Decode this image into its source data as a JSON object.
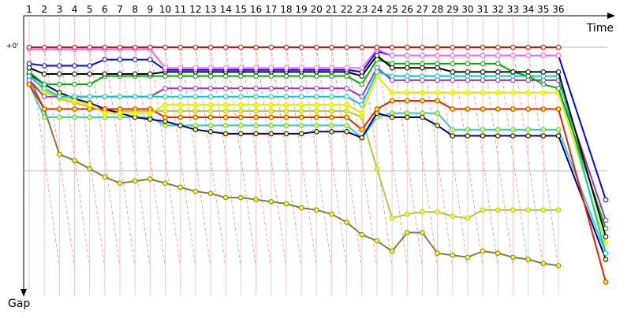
{
  "chart_data": {
    "type": "line",
    "x_label": "Time",
    "y_label": "Gap",
    "categories": [
      "1",
      "2",
      "3",
      "4",
      "5",
      "6",
      "7",
      "8",
      "9",
      "10",
      "11",
      "12",
      "13",
      "14",
      "15",
      "16",
      "17",
      "18",
      "19",
      "20",
      "21",
      "22",
      "23",
      "24",
      "25",
      "26",
      "27",
      "28",
      "29",
      "30",
      "31",
      "32",
      "33",
      "34",
      "35",
      "36",
      null
    ],
    "ylim": [
      0,
      120
    ],
    "yticks": [
      {
        "value": 0,
        "label": "+0'"
      },
      {
        "value": 60,
        "label": null
      }
    ],
    "grid": true,
    "series": [
      {
        "name": null,
        "color": "#808040",
        "marker_fill": "#ffff00",
        "values": [
          15,
          30,
          52,
          55,
          59,
          63,
          66,
          65,
          64,
          66,
          68,
          70,
          71,
          73,
          73,
          74,
          75,
          76,
          78,
          79,
          81,
          85,
          91,
          94,
          99,
          90,
          90,
          100,
          101,
          102,
          99,
          100,
          102,
          103,
          105,
          106,
          null
        ]
      },
      {
        "name": null,
        "color": "#aacc44",
        "marker_fill": "#ffff00",
        "values": [
          13,
          21,
          25,
          27,
          29,
          31,
          31,
          31,
          31,
          31,
          31,
          31,
          31,
          31,
          31,
          31,
          31,
          31,
          31,
          31,
          31,
          31,
          34,
          59,
          83,
          81,
          80,
          80,
          82,
          83,
          79,
          79,
          79,
          79,
          79,
          79,
          null
        ]
      },
      {
        "name": null,
        "color": "#33cccc",
        "marker_fill": "#ffff00",
        "values": [
          18,
          34,
          34,
          34,
          34,
          34,
          34,
          34,
          34,
          38,
          38,
          38,
          38,
          38,
          38,
          38,
          38,
          38,
          38,
          38,
          38,
          38,
          44,
          34,
          32,
          32,
          32,
          32,
          40,
          40,
          40,
          40,
          40,
          40,
          40,
          40,
          100
        ]
      },
      {
        "name": null,
        "color": "#000080",
        "marker_fill": "#ffff00",
        "values": [
          13,
          18,
          22,
          25,
          27,
          30,
          32,
          34,
          35,
          36,
          38,
          40,
          41,
          42,
          42,
          42,
          42,
          42,
          42,
          41,
          41,
          41,
          44,
          32,
          34,
          34,
          34,
          38,
          43,
          43,
          43,
          43,
          43,
          43,
          43,
          43,
          103
        ]
      },
      {
        "name": null,
        "color": "#ee2200",
        "marker_fill": "#ffff00",
        "values": [
          18,
          30,
          30,
          30,
          30,
          30,
          30,
          30,
          30,
          34,
          34,
          34,
          34,
          34,
          34,
          34,
          34,
          34,
          34,
          34,
          34,
          34,
          40,
          30,
          26,
          26,
          26,
          26,
          30,
          30,
          30,
          30,
          30,
          30,
          30,
          30,
          114
        ]
      },
      {
        "name": null,
        "color": "#e6e600",
        "marker_fill": "#ffff00",
        "values": [
          16,
          22,
          24,
          26,
          28,
          32,
          32,
          32,
          32,
          28,
          28,
          28,
          28,
          28,
          28,
          28,
          28,
          28,
          28,
          28,
          28,
          28,
          32,
          14,
          22,
          22,
          22,
          22,
          22,
          22,
          22,
          22,
          22,
          22,
          22,
          22,
          95
        ]
      },
      {
        "name": null,
        "color": "#9933cc",
        "marker_fill": "#ffffff",
        "values": [
          16,
          24,
          24,
          24,
          24,
          24,
          24,
          24,
          24,
          20,
          20,
          20,
          20,
          20,
          20,
          20,
          20,
          20,
          20,
          20,
          20,
          20,
          24,
          10,
          16,
          16,
          16,
          16,
          16,
          16,
          16,
          16,
          16,
          16,
          16,
          16,
          84
        ]
      },
      {
        "name": null,
        "color": "#00cccc",
        "marker_fill": "#ffffff",
        "values": [
          14,
          20,
          24,
          24,
          24,
          24,
          24,
          24,
          24,
          24,
          24,
          24,
          24,
          24,
          24,
          24,
          24,
          24,
          24,
          24,
          24,
          24,
          28,
          12,
          14,
          14,
          14,
          14,
          14,
          14,
          14,
          14,
          14,
          14,
          14,
          14,
          100
        ]
      },
      {
        "name": null,
        "color": "#00aa00",
        "marker_fill": "#ffffff",
        "values": [
          12,
          18,
          18,
          18,
          18,
          14,
          14,
          14,
          14,
          14,
          14,
          14,
          14,
          14,
          14,
          14,
          14,
          14,
          14,
          14,
          14,
          14,
          18,
          6,
          8,
          8,
          8,
          8,
          8,
          8,
          8,
          8,
          12,
          14,
          18,
          20,
          88
        ]
      },
      {
        "name": null,
        "color": "#000000",
        "marker_fill": "#ffffff",
        "values": [
          10,
          13,
          13,
          13,
          13,
          13,
          13,
          13,
          13,
          12,
          12,
          12,
          12,
          12,
          12,
          12,
          12,
          12,
          12,
          12,
          12,
          12,
          14,
          4,
          10,
          10,
          10,
          10,
          12,
          12,
          12,
          12,
          12,
          12,
          12,
          12,
          92
        ]
      },
      {
        "name": null,
        "color": "#0000ff",
        "marker_fill": "#ffffff",
        "values": [
          8,
          9,
          9,
          9,
          9,
          6,
          6,
          6,
          6,
          11,
          11,
          11,
          11,
          11,
          11,
          11,
          11,
          11,
          11,
          11,
          11,
          11,
          12,
          2,
          4,
          4,
          4,
          4,
          4,
          4,
          4,
          4,
          4,
          4,
          4,
          4,
          74
        ]
      },
      {
        "name": null,
        "color": "#ff66ff",
        "marker_fill": "#ffffff",
        "values": [
          1,
          1,
          1,
          1,
          1,
          1,
          1,
          1,
          1,
          10,
          10,
          10,
          10,
          10,
          10,
          10,
          10,
          10,
          10,
          10,
          10,
          10,
          10,
          1,
          4,
          4,
          4,
          4,
          4,
          4,
          4,
          4,
          4,
          4,
          4,
          4,
          null
        ]
      },
      {
        "name": null,
        "color": "#ff0000",
        "marker_fill": "#ffffff",
        "values": [
          0,
          0,
          0,
          0,
          0,
          0,
          0,
          0,
          0,
          0,
          0,
          0,
          0,
          0,
          0,
          0,
          0,
          0,
          0,
          0,
          0,
          0,
          0,
          0,
          0,
          0,
          0,
          0,
          0,
          0,
          0,
          0,
          0,
          0,
          0,
          0,
          null
        ]
      }
    ]
  }
}
